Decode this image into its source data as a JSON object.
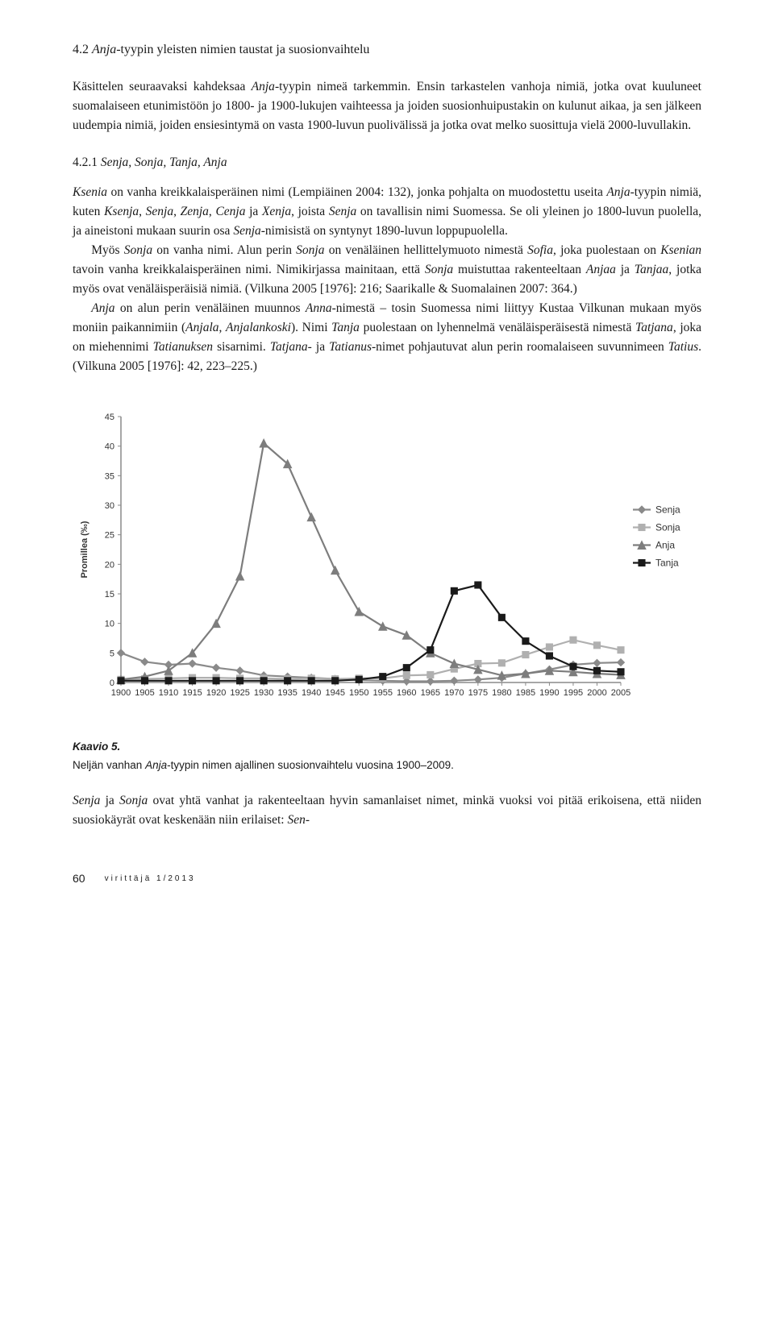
{
  "section": {
    "number": "4.2",
    "title_prefix": "Anja",
    "title_rest": "-tyypin yleisten nimien taustat ja suosionvaihtelu"
  },
  "intro_para": "Käsittelen seuraavaksi kahdeksaa <i>Anja</i>-tyypin nimeä tarkemmin. Ensin tarkastelen vanhoja nimiä, jotka ovat kuuluneet suomalaiseen etunimistöön jo 1800- ja 1900-lukujen vaihteessa ja joiden suosionhuipustakin on kulunut aikaa, ja sen jälkeen uudempia nimiä, joiden ensiesintymä on vasta 1900-luvun puolivälissä ja jotka ovat melko suosittuja vielä 2000-luvullakin.",
  "subsection": {
    "number": "4.2.1",
    "title": "Senja, Sonja, Tanja, Anja"
  },
  "body1": "<i>Ksenia</i> on vanha kreikkalaisperäinen nimi (Lempiäinen 2004: 132), jonka pohjalta on muodostettu useita <i>Anja</i>-tyypin nimiä, kuten <i>Ksenja</i>, <i>Senja</i>, <i>Zenja</i>, <i>Cenja</i> ja <i>Xenja</i>, joista <i>Senja</i> on tavallisin nimi Suomessa. Se oli yleinen jo 1800-luvun puolella, ja aineistoni mukaan suurin osa <i>Senja</i>-nimisistä on syntynyt 1890-luvun loppupuolella.",
  "body2": "Myös <i>Sonja</i> on vanha nimi. Alun perin <i>Sonja</i> on venäläinen hellittelymuoto nimestä <i>Sofia</i>, joka puolestaan on <i>Ksenian</i> tavoin vanha kreikkalaisperäinen nimi. Nimikirjassa mainitaan, että <i>Sonja</i> muistuttaa rakenteeltaan <i>Anjaa</i> ja <i>Tanjaa</i>, jotka myös ovat venäläisperäisiä nimiä. (Vilkuna 2005 [1976]: 216; Saarikalle &amp; Suomalainen 2007: 364.)",
  "body3": "<i>Anja</i> on alun perin venäläinen muunnos <i>Anna</i>-nimestä – tosin Suomessa nimi liittyy Kustaa Vilkunan mukaan myös moniin paikannimiin (<i>Anjala</i>, <i>Anjalankoski</i>). Nimi <i>Tanja</i> puolestaan on lyhennelmä venäläisperäisestä nimestä <i>Tatjana</i>, joka on miehennimi <i>Tatianuksen</i> sisarnimi. <i>Tatjana-</i> ja <i>Tatianus</i>-nimet pohjautuvat alun perin roomalaiseen suvunnimeen <i>Tatius</i>. (Vilkuna 2005 [1976]: 42, 223–225.)",
  "chart": {
    "type": "line",
    "ylabel": "Promillea (‰)",
    "xcategories": [
      "1900",
      "1905",
      "1910",
      "1915",
      "1920",
      "1925",
      "1930",
      "1935",
      "1940",
      "1945",
      "1950",
      "1955",
      "1960",
      "1965",
      "1970",
      "1975",
      "1980",
      "1985",
      "1990",
      "1995",
      "2000",
      "2005"
    ],
    "ylim": [
      0,
      45
    ],
    "ytick_step": 5,
    "series": [
      {
        "name": "Senja",
        "color": "#8a8a8a",
        "marker": "diamond",
        "values": [
          5,
          3.5,
          3,
          3.2,
          2.5,
          2,
          1.2,
          1,
          0.8,
          0.6,
          0.4,
          0.3,
          0.2,
          0.2,
          0.3,
          0.5,
          0.8,
          1.5,
          2.2,
          3,
          3.3,
          3.4
        ]
      },
      {
        "name": "Sonja",
        "color": "#b0b0b0",
        "marker": "square",
        "values": [
          0.5,
          0.6,
          0.7,
          0.8,
          0.8,
          0.7,
          0.7,
          0.6,
          0.7,
          0.6,
          0.7,
          0.7,
          1.2,
          1.3,
          2.3,
          3.2,
          3.3,
          4.7,
          6,
          7.2,
          6.3,
          5.5
        ]
      },
      {
        "name": "Anja",
        "color": "#7d7d7d",
        "marker": "triangle",
        "values": [
          0.5,
          1,
          2,
          5,
          10,
          18,
          40.5,
          37,
          28,
          19,
          12,
          9.5,
          8,
          5,
          3.2,
          2.2,
          1.2,
          1.5,
          2,
          1.8,
          1.5,
          1.3
        ]
      },
      {
        "name": "Tanja",
        "color": "#1a1a1a",
        "marker": "square",
        "values": [
          0.3,
          0.3,
          0.3,
          0.3,
          0.3,
          0.3,
          0.3,
          0.3,
          0.3,
          0.3,
          0.5,
          1,
          2.5,
          5.5,
          15.5,
          16.5,
          11,
          7,
          4.5,
          2.7,
          2,
          1.8
        ]
      }
    ],
    "background_color": "#ffffff",
    "gridline_color": "#cccccc",
    "axis_color": "#8a8a8a",
    "label_fontsize": 11,
    "line_width": 2.2
  },
  "caption": {
    "title": "Kaavio 5.",
    "text": "Neljän vanhan <i>Anja</i>-tyypin nimen ajallinen suosionvaihtelu vuosina 1900–2009."
  },
  "closing_para": "<i>Senja</i> ja <i>Sonja</i> ovat yhtä vanhat ja rakenteeltaan hyvin samanlaiset nimet, minkä vuoksi voi pitää erikoisena, että niiden suosiokäyrät ovat keskenään niin erilaiset: <i>Sen-</i>",
  "footer": {
    "page": "60",
    "journal": "virittäjä 1/2013"
  }
}
